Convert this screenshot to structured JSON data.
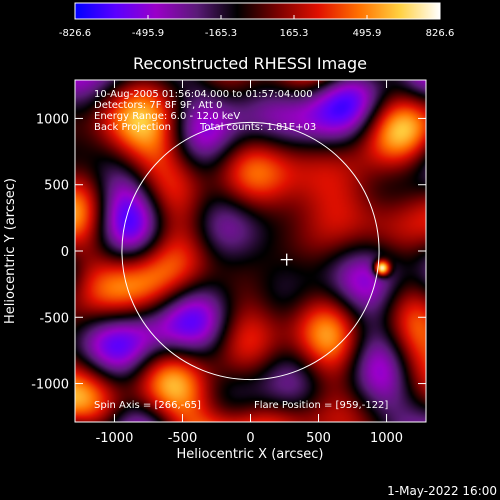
{
  "colorbar": {
    "min": -826.6,
    "max": 826.6,
    "tick_labels": [
      "-826.6",
      "-495.9",
      "-165.3",
      "165.3",
      "495.9",
      "826.6"
    ],
    "palette": [
      "#0000ff",
      "#5a00ff",
      "#9a00c8",
      "#5a1a78",
      "#000000",
      "#7a0000",
      "#e01000",
      "#ff7000",
      "#ffd040",
      "#ffffff"
    ]
  },
  "chart_data": {
    "type": "heatmap",
    "title": "Reconstructed RHESSI Image",
    "xlabel": "Heliocentric X (arcsec)",
    "ylabel": "Heliocentric Y (arcsec)",
    "xlim": [
      -1290,
      1290
    ],
    "ylim": [
      -1290,
      1290
    ],
    "x_ticks": [
      -1000,
      -500,
      0,
      500,
      1000
    ],
    "y_ticks": [
      1000,
      500,
      0,
      -500,
      -1000
    ],
    "x_tick_labels": [
      "-1000",
      "-500",
      "0",
      "500",
      "1000"
    ],
    "y_tick_labels": [
      "1000",
      "500",
      "0",
      "-500",
      "-1000"
    ],
    "value_range": [
      -826.6,
      826.6
    ],
    "solar_limb_radius": 945,
    "center_marker": [
      266,
      -65
    ],
    "bright_source": [
      959,
      -122
    ],
    "annotations": [
      "10-Aug-2005 01:56:04.000 to 01:57:04.000",
      "Detectors: 7F 8F 9F, Att 0",
      "Energy Range: 6.0 - 12.0 keV",
      "Back Projection",
      "Total counts: 1.81E+03"
    ],
    "spin_axis": "Spin Axis = [266,-65]",
    "flare_position": "Flare Position = [959,-122]",
    "grid": false
  },
  "footer": {
    "date": "1-May-2022 16:00"
  }
}
